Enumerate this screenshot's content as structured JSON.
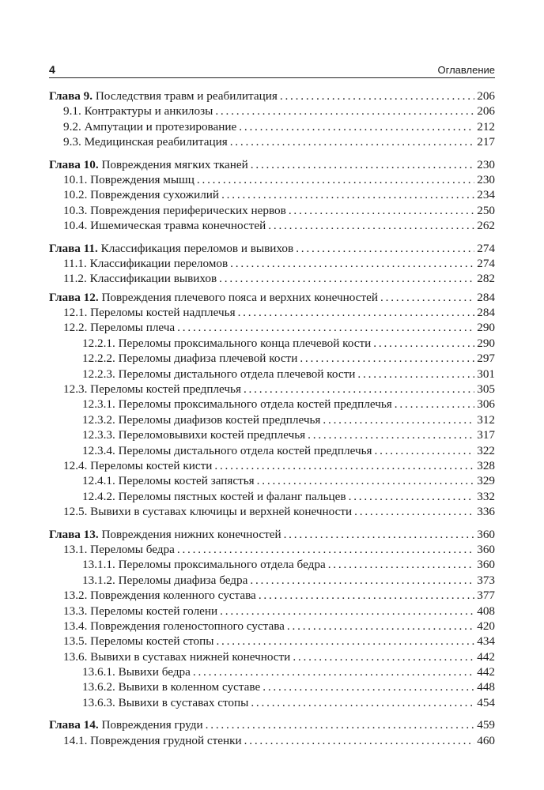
{
  "header": {
    "page_number": "4",
    "running_title": "Оглавление"
  },
  "toc": [
    {
      "level": 1,
      "prefix": "Глава 9.",
      "title": "Последствия травм и реабилитация",
      "page": "206"
    },
    {
      "level": 2,
      "title": "9.1. Контрактуры и анкилозы",
      "page": "206"
    },
    {
      "level": 2,
      "title": "9.2. Ампутации и протезирование",
      "page": "212"
    },
    {
      "level": 2,
      "title": "9.3. Медицинская реабилитация",
      "page": "217"
    },
    {
      "level": 1,
      "prefix": "Глава 10.",
      "title": "Повреждения мягких тканей",
      "page": "230"
    },
    {
      "level": 2,
      "title": "10.1. Повреждения мышц",
      "page": "230"
    },
    {
      "level": 2,
      "title": "10.2. Повреждения сухожилий",
      "page": "234"
    },
    {
      "level": 2,
      "title": "10.3. Повреждения периферических нервов",
      "page": "250"
    },
    {
      "level": 2,
      "title": "10.4. Ишемическая травма конечностей",
      "page": "262"
    },
    {
      "level": 1,
      "prefix": "Глава 11.",
      "title": "Классификация переломов и вывихов",
      "page": "274"
    },
    {
      "level": 2,
      "title": "11.1. Классификации переломов",
      "page": "274"
    },
    {
      "level": 2,
      "title": "11.2. Классификации вывихов",
      "page": "282"
    },
    {
      "level": 1,
      "prefix": "Глава 12.",
      "title": "Повреждения плечевого пояса и верхних конечностей",
      "page": "284"
    },
    {
      "level": 2,
      "title": "12.1. Переломы костей надплечья",
      "page": "284"
    },
    {
      "level": 2,
      "title": "12.2. Переломы плеча",
      "page": "290"
    },
    {
      "level": 3,
      "title": "12.2.1. Переломы проксимального конца плечевой кости",
      "page": "290"
    },
    {
      "level": 3,
      "title": "12.2.2. Переломы диафиза плечевой кости",
      "page": "297"
    },
    {
      "level": 3,
      "title": "12.2.3. Переломы дистального отдела плечевой кости",
      "page": "301"
    },
    {
      "level": 2,
      "title": "12.3. Переломы костей предплечья",
      "page": "305"
    },
    {
      "level": 3,
      "title": "12.3.1. Переломы проксимального отдела костей предплечья",
      "page": "306"
    },
    {
      "level": 3,
      "title": "12.3.2. Переломы диафизов костей предплечья",
      "page": "312"
    },
    {
      "level": 3,
      "title": "12.3.3. Переломовывихи костей предплечья",
      "page": "317"
    },
    {
      "level": 3,
      "title": "12.3.4. Переломы дистального отдела костей предплечья",
      "page": "322"
    },
    {
      "level": 2,
      "title": "12.4. Переломы костей кисти",
      "page": "328"
    },
    {
      "level": 3,
      "title": "12.4.1. Переломы костей запястья",
      "page": "329"
    },
    {
      "level": 3,
      "title": "12.4.2. Переломы пястных костей и фаланг пальцев",
      "page": "332"
    },
    {
      "level": 2,
      "title": "12.5. Вывихи в суставах ключицы и верхней конечности",
      "page": "336"
    },
    {
      "level": 1,
      "prefix": "Глава 13.",
      "title": "Повреждения нижних конечностей",
      "page": "360"
    },
    {
      "level": 2,
      "title": "13.1. Переломы бедра",
      "page": "360"
    },
    {
      "level": 3,
      "title": "13.1.1. Переломы проксимального отдела бедра",
      "page": "360"
    },
    {
      "level": 3,
      "title": "13.1.2. Переломы диафиза бедра",
      "page": "373"
    },
    {
      "level": 2,
      "title": "13.2. Повреждения коленного сустава",
      "page": "377"
    },
    {
      "level": 2,
      "title": "13.3. Переломы костей голени",
      "page": "408"
    },
    {
      "level": 2,
      "title": "13.4. Повреждения голеностопного сустава",
      "page": "420"
    },
    {
      "level": 2,
      "title": "13.5. Переломы костей стопы",
      "page": "434"
    },
    {
      "level": 2,
      "title": "13.6. Вывихи в суставах нижней конечности",
      "page": "442"
    },
    {
      "level": 3,
      "title": "13.6.1. Вывихи бедра",
      "page": "442"
    },
    {
      "level": 3,
      "title": "13.6.2. Вывихи в коленном суставе",
      "page": "448"
    },
    {
      "level": 3,
      "title": "13.6.3. Вывихи в суставах стопы",
      "page": "454"
    },
    {
      "level": 1,
      "prefix": "Глава 14.",
      "title": "Повреждения груди",
      "page": "459"
    },
    {
      "level": 2,
      "title": "14.1. Повреждения грудной стенки",
      "page": "460"
    }
  ]
}
